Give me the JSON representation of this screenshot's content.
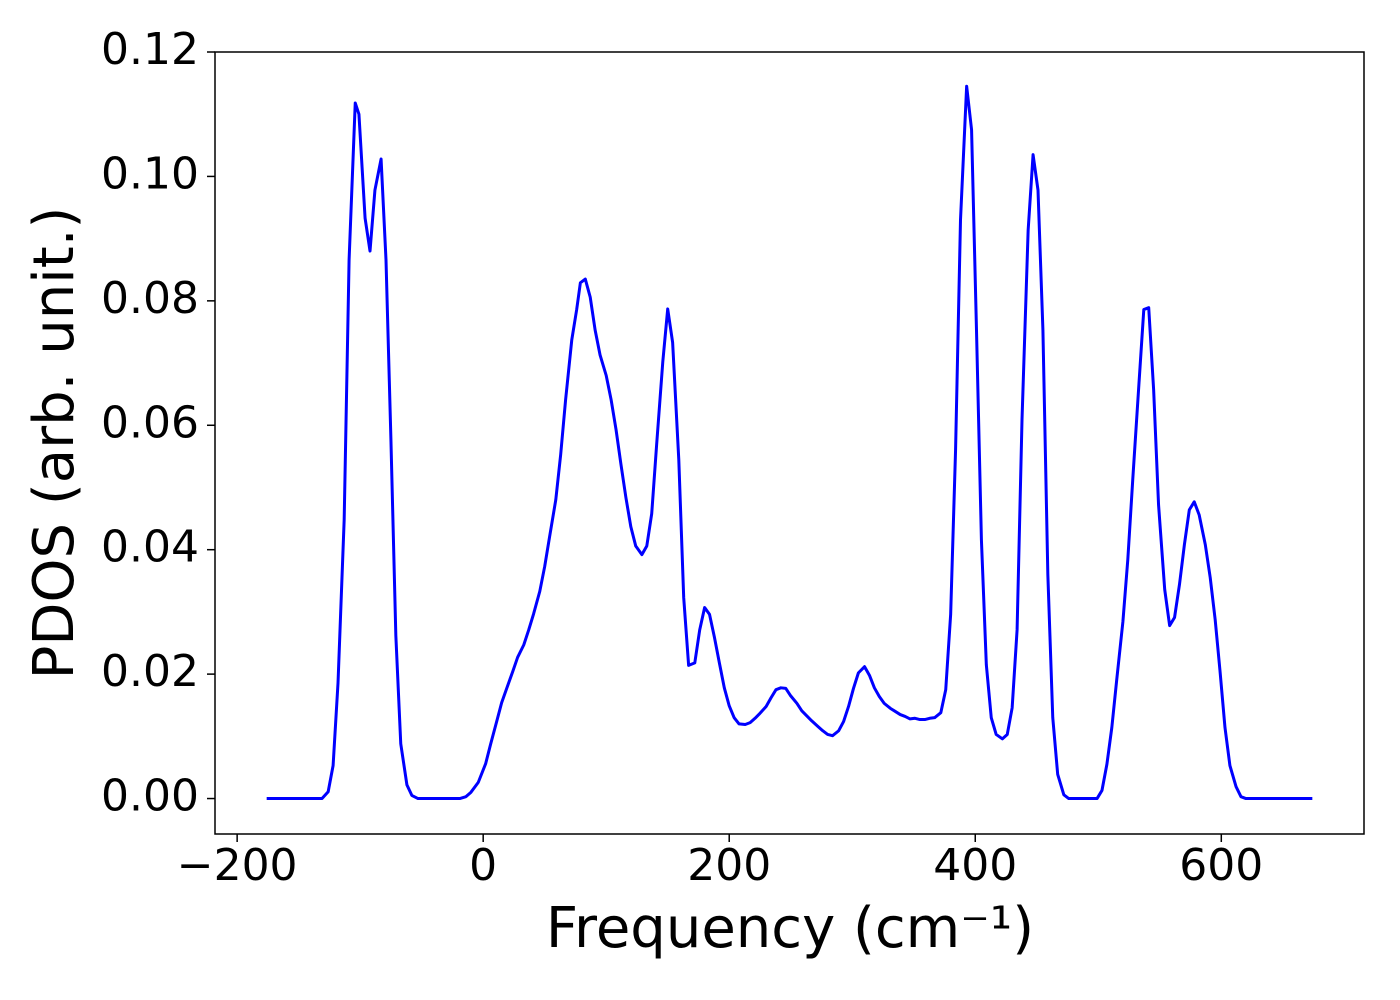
{
  "chart_data": {
    "type": "line",
    "x_label": "Frequency (cm⁻¹)",
    "y_label": "PDOS (arb. unit.)",
    "x": [
      -176,
      -131,
      -126,
      -122,
      -118,
      -113,
      -109,
      -104,
      -101,
      -96,
      -92,
      -88,
      -83,
      -79,
      -75,
      -71,
      -67,
      -62,
      -58,
      -53,
      -19,
      -14,
      -10,
      -4,
      2,
      6,
      11,
      15,
      20,
      24,
      28,
      33,
      37,
      41,
      46,
      50,
      54,
      59,
      63,
      67,
      72,
      76,
      79,
      83,
      87,
      91,
      95,
      100,
      104,
      108,
      112,
      116,
      120,
      124,
      129,
      133,
      137,
      141,
      146,
      150,
      154,
      159,
      163,
      167,
      172,
      176,
      180,
      184,
      188,
      192,
      196,
      200,
      204,
      208,
      213,
      217,
      221,
      225,
      230,
      234,
      238,
      242,
      246,
      250,
      255,
      259,
      263,
      267,
      272,
      276,
      280,
      284,
      289,
      293,
      297,
      301,
      305,
      310,
      314,
      318,
      322,
      326,
      331,
      335,
      339,
      343,
      347,
      351,
      355,
      359,
      363,
      367,
      372,
      376,
      380,
      384,
      388,
      393,
      397,
      401,
      405,
      409,
      413,
      417,
      422,
      426,
      430,
      434,
      438,
      443,
      447,
      451,
      455,
      459,
      463,
      467,
      472,
      476,
      499,
      503,
      507,
      511,
      515,
      520,
      524,
      528,
      533,
      537,
      541,
      545,
      549,
      554,
      558,
      562,
      566,
      570,
      574,
      578,
      582,
      587,
      591,
      595,
      599,
      603,
      607,
      612,
      616,
      620,
      674
    ],
    "series": [
      {
        "name": "PDOS",
        "color": "#0000ff",
        "values": [
          0,
          0,
          0.0011,
          0.0053,
          0.0186,
          0.0448,
          0.0866,
          0.1118,
          0.11,
          0.0933,
          0.088,
          0.0978,
          0.1028,
          0.0866,
          0.0577,
          0.0262,
          0.0088,
          0.0022,
          0.0005,
          0,
          0,
          0.0003,
          0.001,
          0.0026,
          0.0056,
          0.0087,
          0.0124,
          0.0154,
          0.0182,
          0.0204,
          0.0227,
          0.0247,
          0.0271,
          0.0297,
          0.0333,
          0.0373,
          0.0421,
          0.048,
          0.0553,
          0.0641,
          0.0737,
          0.0786,
          0.0829,
          0.0835,
          0.0806,
          0.0753,
          0.0713,
          0.068,
          0.0641,
          0.0593,
          0.0537,
          0.0484,
          0.0437,
          0.0406,
          0.0392,
          0.0406,
          0.0458,
          0.0569,
          0.0702,
          0.0787,
          0.0733,
          0.0545,
          0.0323,
          0.0214,
          0.0218,
          0.0271,
          0.0307,
          0.0296,
          0.0259,
          0.0218,
          0.0178,
          0.0149,
          0.013,
          0.012,
          0.0119,
          0.0122,
          0.0129,
          0.0137,
          0.0148,
          0.0162,
          0.0175,
          0.0178,
          0.0177,
          0.0165,
          0.0153,
          0.0141,
          0.0133,
          0.0125,
          0.0116,
          0.0109,
          0.0103,
          0.0101,
          0.0109,
          0.0124,
          0.0148,
          0.0177,
          0.0202,
          0.0212,
          0.0198,
          0.0178,
          0.0164,
          0.0153,
          0.0145,
          0.014,
          0.0135,
          0.0132,
          0.0128,
          0.0129,
          0.0127,
          0.0127,
          0.0129,
          0.013,
          0.0138,
          0.0175,
          0.0296,
          0.0561,
          0.093,
          0.1145,
          0.1075,
          0.0753,
          0.0416,
          0.0215,
          0.013,
          0.0103,
          0.0096,
          0.0103,
          0.0146,
          0.0271,
          0.0609,
          0.0914,
          0.1035,
          0.0978,
          0.0753,
          0.036,
          0.013,
          0.0039,
          0.0006,
          0,
          0,
          0.0013,
          0.0055,
          0.0114,
          0.0191,
          0.0284,
          0.0384,
          0.0512,
          0.0665,
          0.0786,
          0.0789,
          0.0657,
          0.0472,
          0.0336,
          0.0278,
          0.0291,
          0.0344,
          0.0408,
          0.0464,
          0.0477,
          0.0456,
          0.0408,
          0.0355,
          0.0288,
          0.0204,
          0.0114,
          0.0053,
          0.0019,
          0.0003,
          0,
          0
        ]
      }
    ],
    "xlim": [
      -218,
      716
    ],
    "ylim": [
      -0.0057,
      0.12
    ],
    "xticks": [
      {
        "value": -200,
        "label": "−200"
      },
      0,
      200,
      400,
      600
    ],
    "yticks": [
      {
        "value": 0,
        "label": "0.00"
      },
      {
        "value": 0.02,
        "label": "0.02"
      },
      {
        "value": 0.04,
        "label": "0.04"
      },
      {
        "value": 0.06,
        "label": "0.06"
      },
      {
        "value": 0.08,
        "label": "0.08"
      },
      {
        "value": 0.1,
        "label": "0.10"
      },
      {
        "value": 0.12,
        "label": "0.12"
      }
    ],
    "grid": false
  }
}
